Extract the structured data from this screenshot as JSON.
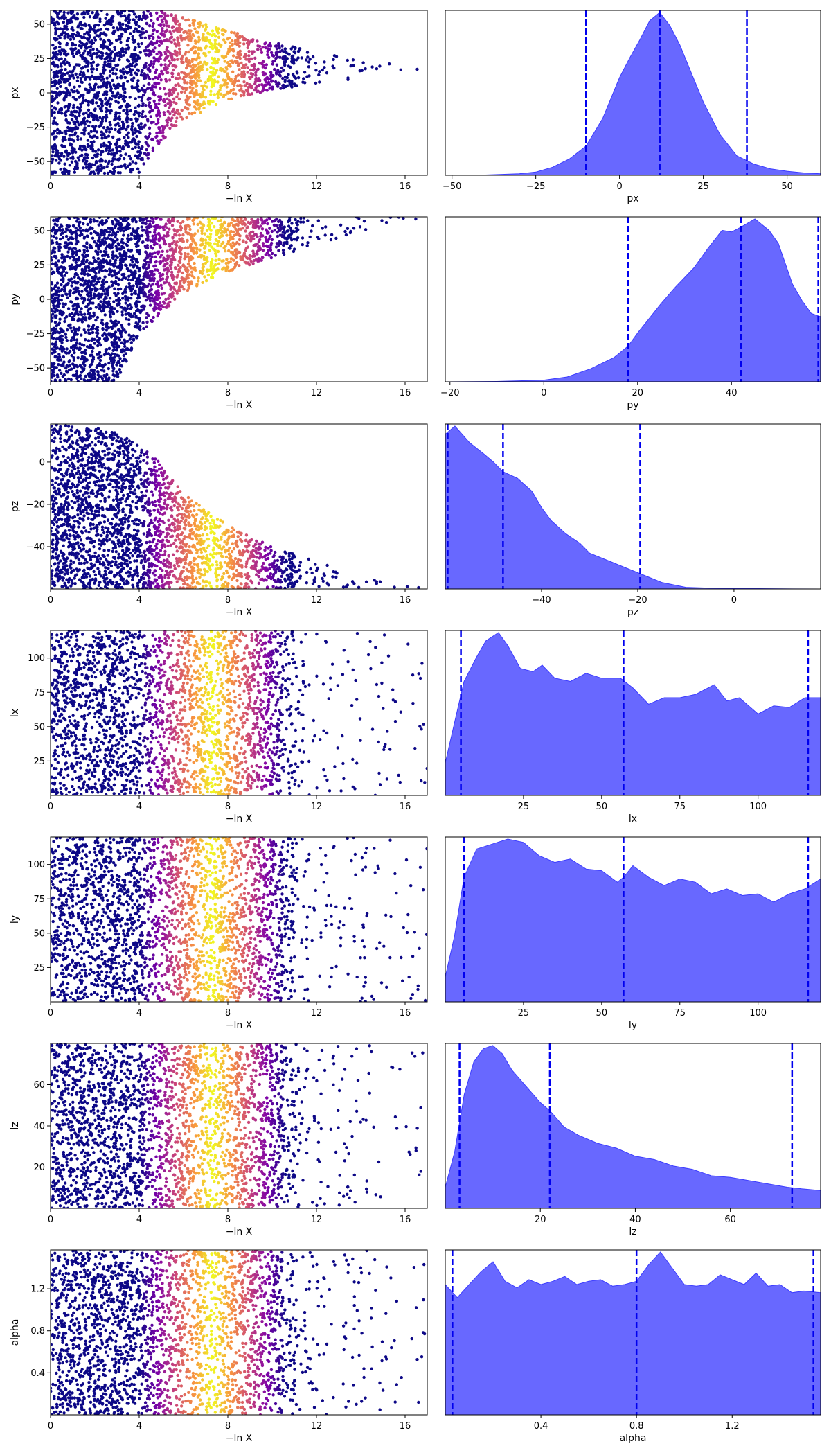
{
  "chart_data": [
    {
      "type": "scatter",
      "xlabel": "−ln X",
      "ylabel": "px",
      "xlim": [
        0,
        17
      ],
      "ylim": [
        -60,
        60
      ],
      "xticks": [
        "0",
        "4",
        "8",
        "12",
        "16"
      ],
      "yticks": [
        "50",
        "25",
        "0",
        "−25",
        "−50"
      ],
      "color_peak_x": 7.3,
      "colormap": [
        "#0d0887",
        "#7e03a8",
        "#cc4778",
        "#f89540",
        "#f0f921"
      ],
      "funnel_max_x": 17,
      "funnel_center_y": 15,
      "outline": [
        [
          0,
          -60
        ],
        [
          2,
          -60
        ],
        [
          4,
          -58
        ],
        [
          5,
          -35
        ],
        [
          6,
          -20
        ],
        [
          8,
          -5
        ],
        [
          10,
          2
        ],
        [
          12,
          7
        ],
        [
          14,
          10
        ],
        [
          16,
          15
        ],
        [
          17,
          15
        ],
        [
          16,
          20
        ],
        [
          14,
          23
        ],
        [
          12,
          30
        ],
        [
          10,
          37
        ],
        [
          8,
          45
        ],
        [
          6,
          55
        ],
        [
          5,
          60
        ],
        [
          0,
          60
        ]
      ]
    },
    {
      "type": "area",
      "xlabel": "px",
      "ylabel": "",
      "xlim": [
        -52,
        60
      ],
      "xticks": [
        "−50",
        "−25",
        "0",
        "25",
        "50"
      ],
      "vlines": [
        -10,
        12,
        38
      ],
      "x": [
        -52,
        -40,
        -30,
        -25,
        -20,
        -15,
        -10,
        -5,
        0,
        3,
        6,
        9,
        12,
        15,
        18,
        21,
        25,
        30,
        35,
        40,
        45,
        50,
        55,
        60
      ],
      "density": [
        0.0,
        0.002,
        0.01,
        0.02,
        0.05,
        0.1,
        0.18,
        0.35,
        0.6,
        0.72,
        0.83,
        0.95,
        1.0,
        0.92,
        0.8,
        0.65,
        0.45,
        0.25,
        0.12,
        0.07,
        0.04,
        0.025,
        0.015,
        0.01
      ]
    },
    {
      "type": "scatter",
      "xlabel": "−ln X",
      "ylabel": "py",
      "xlim": [
        0,
        17
      ],
      "ylim": [
        -60,
        60
      ],
      "xticks": [
        "0",
        "4",
        "8",
        "12",
        "16"
      ],
      "yticks": [
        "50",
        "25",
        "0",
        "−25",
        "−50"
      ],
      "color_peak_x": 7.3,
      "colormap": [
        "#0d0887",
        "#7e03a8",
        "#cc4778",
        "#f89540",
        "#f0f921"
      ],
      "funnel_max_x": 17,
      "funnel_center_y": 58,
      "outline": [
        [
          0,
          -60
        ],
        [
          3,
          -60
        ],
        [
          4,
          -25
        ],
        [
          6,
          5
        ],
        [
          8,
          20
        ],
        [
          10,
          30
        ],
        [
          12,
          40
        ],
        [
          14,
          50
        ],
        [
          16,
          56
        ],
        [
          17,
          58
        ],
        [
          16,
          60
        ],
        [
          0,
          60
        ]
      ]
    },
    {
      "type": "area",
      "xlabel": "py",
      "ylabel": "",
      "xlim": [
        -21,
        59
      ],
      "xticks": [
        "−20",
        "0",
        "20",
        "40"
      ],
      "vlines": [
        18,
        42,
        58.5
      ],
      "x": [
        -21,
        -10,
        0,
        5,
        10,
        15,
        18,
        20,
        25,
        28,
        32,
        35,
        38,
        40,
        42,
        45,
        48,
        50,
        53,
        55,
        57,
        59
      ],
      "density": [
        0.0,
        0.002,
        0.01,
        0.03,
        0.08,
        0.15,
        0.22,
        0.3,
        0.48,
        0.58,
        0.7,
        0.82,
        0.93,
        0.92,
        0.95,
        1.0,
        0.93,
        0.85,
        0.6,
        0.5,
        0.42,
        0.4
      ]
    },
    {
      "type": "scatter",
      "xlabel": "−ln X",
      "ylabel": "pz",
      "xlim": [
        0,
        17
      ],
      "ylim": [
        -60,
        18
      ],
      "xticks": [
        "0",
        "4",
        "8",
        "12",
        "16"
      ],
      "yticks": [
        "0",
        "−20",
        "−40"
      ],
      "color_peak_x": 7.3,
      "colormap": [
        "#0d0887",
        "#7e03a8",
        "#cc4778",
        "#f89540",
        "#f0f921"
      ],
      "funnel_max_x": 17,
      "funnel_center_y": -58,
      "outline": [
        [
          0,
          -60
        ],
        [
          17,
          -60
        ],
        [
          16,
          -57
        ],
        [
          14,
          -53
        ],
        [
          12,
          -47
        ],
        [
          10,
          -40
        ],
        [
          8,
          -30
        ],
        [
          6,
          -15
        ],
        [
          5,
          0
        ],
        [
          3,
          15
        ],
        [
          0,
          18
        ]
      ]
    },
    {
      "type": "area",
      "xlabel": "pz",
      "ylabel": "",
      "xlim": [
        -60,
        18
      ],
      "xticks": [
        "−40",
        "−20",
        "0"
      ],
      "vlines": [
        -59.5,
        -48,
        -19.5
      ],
      "x": [
        -60,
        -58,
        -55,
        -52,
        -50,
        -48,
        -45,
        -42,
        -40,
        -38,
        -35,
        -32,
        -30,
        -25,
        -20,
        -15,
        -10,
        -5,
        0,
        5,
        10,
        18
      ],
      "density": [
        0.95,
        1.0,
        0.9,
        0.83,
        0.78,
        0.72,
        0.68,
        0.6,
        0.5,
        0.42,
        0.34,
        0.28,
        0.22,
        0.16,
        0.1,
        0.04,
        0.01,
        0.005,
        0.004,
        0.002,
        0.001,
        0.0
      ]
    },
    {
      "type": "scatter",
      "xlabel": "−ln X",
      "ylabel": "lx",
      "xlim": [
        0,
        17
      ],
      "ylim": [
        0,
        120
      ],
      "xticks": [
        "0",
        "4",
        "8",
        "12",
        "16"
      ],
      "yticks": [
        "100",
        "75",
        "50",
        "25"
      ],
      "color_peak_x": 7.3,
      "colormap": [
        "#0d0887",
        "#7e03a8",
        "#cc4778",
        "#f89540",
        "#f0f921"
      ],
      "funnel_max_x": 0,
      "funnel_center_y": 60,
      "outline": []
    },
    {
      "type": "area",
      "xlabel": "lx",
      "ylabel": "",
      "xlim": [
        0,
        120
      ],
      "xticks": [
        "25",
        "50",
        "75",
        "100"
      ],
      "vlines": [
        5,
        57,
        116
      ],
      "x": [
        0,
        3,
        6,
        10,
        13,
        17,
        20,
        24,
        28,
        31,
        35,
        40,
        45,
        50,
        56,
        60,
        65,
        70,
        75,
        80,
        86,
        90,
        94,
        100,
        105,
        110,
        115,
        120
      ],
      "density": [
        0.2,
        0.45,
        0.7,
        0.85,
        0.95,
        1.0,
        0.92,
        0.78,
        0.76,
        0.8,
        0.72,
        0.7,
        0.75,
        0.72,
        0.72,
        0.66,
        0.56,
        0.6,
        0.6,
        0.62,
        0.68,
        0.58,
        0.6,
        0.5,
        0.55,
        0.54,
        0.6,
        0.6
      ]
    },
    {
      "type": "scatter",
      "xlabel": "−ln X",
      "ylabel": "ly",
      "xlim": [
        0,
        17
      ],
      "ylim": [
        0,
        120
      ],
      "xticks": [
        "0",
        "4",
        "8",
        "12",
        "16"
      ],
      "yticks": [
        "100",
        "75",
        "50",
        "25"
      ],
      "color_peak_x": 7.3,
      "colormap": [
        "#0d0887",
        "#7e03a8",
        "#cc4778",
        "#f89540",
        "#f0f921"
      ],
      "funnel_max_x": 0,
      "funnel_center_y": 60,
      "outline": []
    },
    {
      "type": "area",
      "xlabel": "ly",
      "ylabel": "",
      "xlim": [
        0,
        120
      ],
      "xticks": [
        "25",
        "50",
        "75",
        "100"
      ],
      "vlines": [
        6,
        57,
        116
      ],
      "x": [
        0,
        3,
        6,
        10,
        15,
        20,
        25,
        30,
        35,
        40,
        45,
        50,
        55,
        57,
        60,
        65,
        70,
        75,
        80,
        85,
        90,
        95,
        100,
        105,
        110,
        115,
        120
      ],
      "density": [
        0.15,
        0.4,
        0.75,
        0.92,
        0.95,
        0.98,
        0.96,
        0.88,
        0.84,
        0.86,
        0.8,
        0.79,
        0.72,
        0.75,
        0.82,
        0.75,
        0.7,
        0.74,
        0.72,
        0.65,
        0.68,
        0.64,
        0.65,
        0.6,
        0.65,
        0.68,
        0.74
      ]
    },
    {
      "type": "scatter",
      "xlabel": "−ln X",
      "ylabel": "lz",
      "xlim": [
        0,
        17
      ],
      "ylim": [
        0,
        80
      ],
      "xticks": [
        "0",
        "4",
        "8",
        "12",
        "16"
      ],
      "yticks": [
        "60",
        "40",
        "20"
      ],
      "color_peak_x": 7.3,
      "colormap": [
        "#0d0887",
        "#7e03a8",
        "#cc4778",
        "#f89540",
        "#f0f921"
      ],
      "funnel_max_x": 0,
      "funnel_center_y": 40,
      "outline": []
    },
    {
      "type": "area",
      "xlabel": "lz",
      "ylabel": "",
      "xlim": [
        0,
        79
      ],
      "xticks": [
        "20",
        "40",
        "60"
      ],
      "vlines": [
        3,
        22,
        73
      ],
      "x": [
        0,
        2,
        4,
        6,
        8,
        10,
        12,
        14,
        17,
        20,
        22,
        25,
        28,
        32,
        36,
        40,
        44,
        48,
        52,
        56,
        60,
        64,
        68,
        72,
        75,
        79
      ],
      "density": [
        0.13,
        0.35,
        0.7,
        0.9,
        0.98,
        1.0,
        0.95,
        0.85,
        0.75,
        0.65,
        0.6,
        0.5,
        0.45,
        0.4,
        0.37,
        0.32,
        0.3,
        0.26,
        0.24,
        0.2,
        0.19,
        0.17,
        0.15,
        0.13,
        0.12,
        0.11
      ]
    },
    {
      "type": "scatter",
      "xlabel": "−ln X",
      "ylabel": "alpha",
      "xlim": [
        0,
        17
      ],
      "ylim": [
        0,
        1.57
      ],
      "xticks": [
        "0",
        "4",
        "8",
        "12",
        "16"
      ],
      "yticks": [
        "1.2",
        "0.8",
        "0.4"
      ],
      "color_peak_x": 7.3,
      "colormap": [
        "#0d0887",
        "#7e03a8",
        "#cc4778",
        "#f89540",
        "#f0f921"
      ],
      "funnel_max_x": 0,
      "funnel_center_y": 0.8,
      "outline": []
    },
    {
      "type": "area",
      "xlabel": "alpha",
      "ylabel": "",
      "xlim": [
        0,
        1.57
      ],
      "xticks": [
        "0.4",
        "0.8",
        "1.2"
      ],
      "vlines": [
        0.03,
        0.8,
        1.54
      ],
      "x": [
        0,
        0.05,
        0.1,
        0.15,
        0.2,
        0.25,
        0.3,
        0.35,
        0.4,
        0.45,
        0.5,
        0.55,
        0.6,
        0.65,
        0.7,
        0.75,
        0.8,
        0.85,
        0.9,
        0.95,
        1.0,
        1.05,
        1.1,
        1.15,
        1.2,
        1.25,
        1.3,
        1.35,
        1.4,
        1.45,
        1.5,
        1.57
      ],
      "density": [
        0.8,
        0.72,
        0.8,
        0.88,
        0.94,
        0.82,
        0.78,
        0.83,
        0.8,
        0.82,
        0.85,
        0.8,
        0.82,
        0.83,
        0.79,
        0.8,
        0.82,
        0.92,
        1.0,
        0.9,
        0.8,
        0.79,
        0.8,
        0.86,
        0.83,
        0.8,
        0.87,
        0.79,
        0.8,
        0.75,
        0.76,
        0.75
      ]
    }
  ]
}
